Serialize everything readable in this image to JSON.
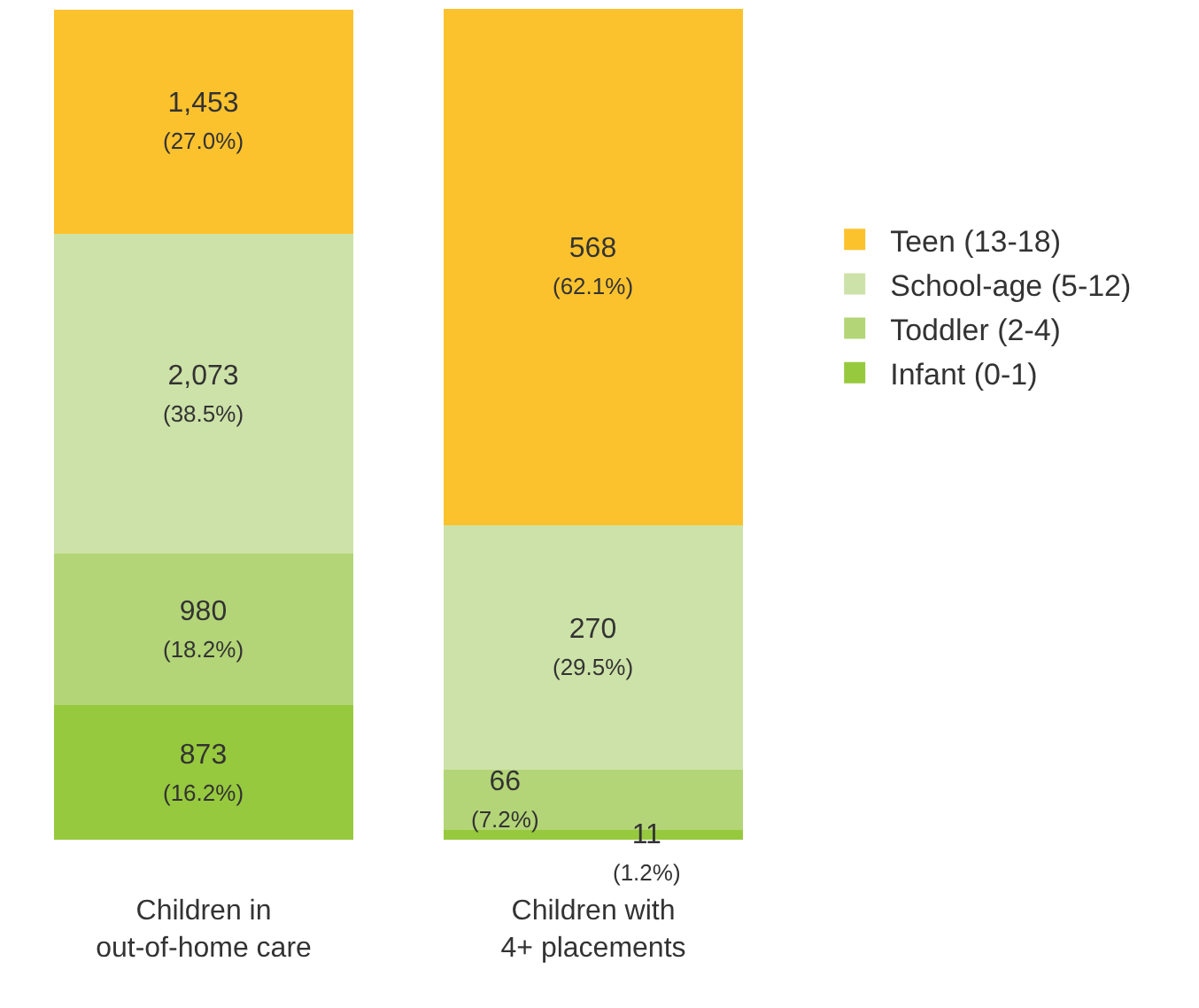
{
  "chart_data": {
    "type": "bar",
    "stacked": true,
    "legend": "right",
    "categories": [
      "Children in\nout-of-home care",
      "Children with\n4+ placements"
    ],
    "series": [
      {
        "name": "Infant (0-1)",
        "color": "#96c93d",
        "values": [
          16.2,
          1.2
        ],
        "value_labels": [
          "873\n(16.2%)",
          "11\n(1.2%)"
        ]
      },
      {
        "name": "Toddler (2-4)",
        "color": "#b3d577",
        "values": [
          18.2,
          7.2
        ],
        "value_labels": [
          "980\n(18.2%)",
          "66\n(7.2%)"
        ]
      },
      {
        "name": "School-age (5-12)",
        "color": "#cde2a8",
        "values": [
          38.5,
          29.5
        ],
        "value_labels": [
          "2,073\n(38.5%)",
          "270\n(29.5%)"
        ]
      },
      {
        "name": "Teen (13-18)",
        "color": "#fcc22e",
        "values": [
          27.0,
          62.1
        ],
        "value_labels": [
          "1,453\n(27.0%)",
          "568\n(62.1%)"
        ]
      }
    ]
  }
}
